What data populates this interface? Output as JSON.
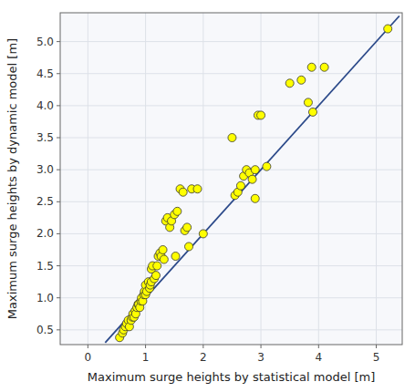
{
  "chart_data": {
    "type": "scatter",
    "xlabel": "Maximum surge heights by statistical model [m]",
    "ylabel": "Maximum surge heights by dynamic model [m]",
    "xlim": [
      -0.48,
      5.45
    ],
    "ylim": [
      0.27,
      5.45
    ],
    "xticks": [
      0,
      1,
      2,
      3,
      4,
      5
    ],
    "yticks": [
      0.5,
      {
        "value": 1.0,
        "label": "1.0"
      },
      1.5,
      {
        "value": 2.0,
        "label": "2.0"
      },
      2.5,
      {
        "value": 3.0,
        "label": "3.0"
      },
      3.5,
      {
        "value": 4.0,
        "label": "4.0"
      },
      4.5,
      {
        "value": 5.0,
        "label": "5.0"
      }
    ],
    "grid": true,
    "series": [
      {
        "type": "scatter",
        "marker": "circle",
        "color": "#FFFF00",
        "x": [
          0.55,
          0.6,
          0.62,
          0.65,
          0.67,
          0.7,
          0.72,
          0.75,
          0.77,
          0.78,
          0.8,
          0.82,
          0.83,
          0.85,
          0.87,
          0.88,
          0.9,
          0.92,
          0.93,
          0.95,
          0.97,
          0.98,
          1.0,
          1.0,
          1.02,
          1.05,
          1.07,
          1.08,
          1.1,
          1.1,
          1.12,
          1.15,
          1.18,
          1.2,
          1.22,
          1.25,
          1.27,
          1.3,
          1.32,
          1.35,
          1.38,
          1.42,
          1.45,
          1.5,
          1.52,
          1.55,
          1.6,
          1.65,
          1.68,
          1.72,
          1.75,
          1.8,
          1.9,
          2.0,
          2.5,
          2.55,
          2.6,
          2.65,
          2.7,
          2.75,
          2.8,
          2.85,
          2.9,
          2.9,
          2.95,
          3.0,
          3.1,
          3.5,
          3.7,
          3.82,
          3.88,
          3.9,
          4.1,
          5.2
        ],
        "values": [
          0.38,
          0.45,
          0.5,
          0.55,
          0.6,
          0.65,
          0.55,
          0.65,
          0.7,
          0.75,
          0.7,
          0.8,
          0.75,
          0.85,
          0.9,
          0.9,
          0.85,
          0.95,
          1.0,
          0.95,
          1.05,
          1.1,
          1.05,
          1.2,
          1.1,
          1.25,
          1.15,
          1.2,
          1.45,
          1.25,
          1.5,
          1.3,
          1.35,
          1.5,
          1.65,
          1.7,
          1.65,
          1.75,
          1.6,
          2.2,
          2.25,
          2.1,
          2.2,
          2.3,
          1.65,
          2.35,
          2.7,
          2.65,
          2.05,
          2.1,
          1.8,
          2.7,
          2.7,
          2.0,
          3.5,
          2.6,
          2.65,
          2.75,
          2.9,
          3.0,
          2.95,
          2.85,
          3.0,
          2.55,
          3.85,
          3.85,
          3.05,
          4.35,
          4.4,
          4.05,
          4.6,
          3.9,
          4.6,
          5.2
        ]
      },
      {
        "type": "line",
        "line_style": "solid",
        "color": "#2c4a8a",
        "x": [
          0.3,
          5.4
        ],
        "values": [
          0.3,
          5.4
        ]
      }
    ]
  }
}
